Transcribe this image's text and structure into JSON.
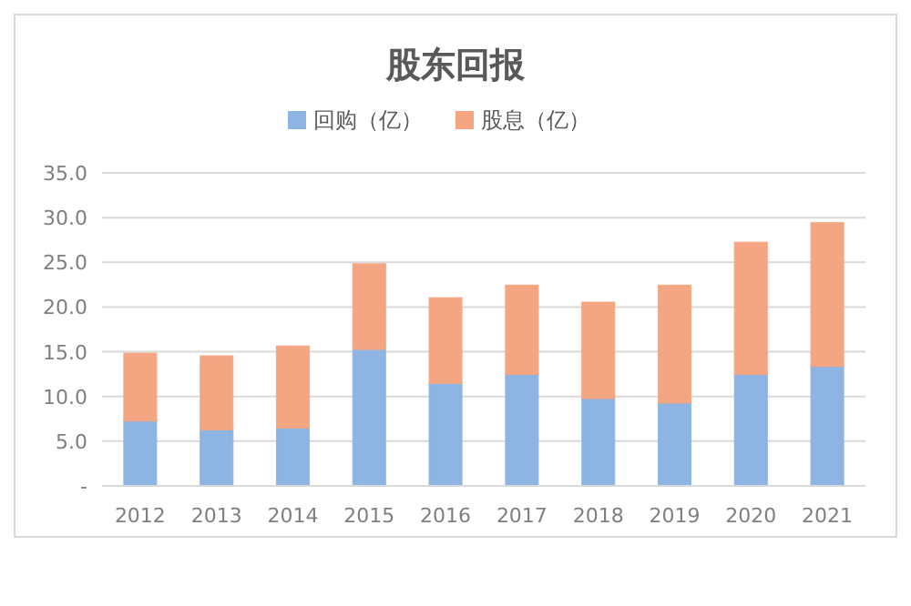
{
  "chart_data": {
    "type": "bar",
    "title": "股东回报",
    "stacked": true,
    "categories": [
      "2012",
      "2013",
      "2014",
      "2015",
      "2016",
      "2017",
      "2018",
      "2019",
      "2020",
      "2021"
    ],
    "series": [
      {
        "name": "回购（亿）",
        "color": "#8db4e2",
        "values": [
          7.3,
          6.3,
          6.5,
          15.3,
          11.5,
          12.5,
          9.8,
          9.3,
          12.5,
          13.4
        ]
      },
      {
        "name": "股息（亿）",
        "color": "#f4a582",
        "values": [
          7.5,
          8.2,
          9.1,
          9.5,
          9.5,
          9.9,
          10.7,
          13.1,
          14.7,
          16.0
        ]
      }
    ],
    "ylim": [
      0,
      35
    ],
    "yticks": [
      {
        "value": 0,
        "label": "-"
      },
      {
        "value": 5,
        "label": "5.0"
      },
      {
        "value": 10,
        "label": "10.0"
      },
      {
        "value": 15,
        "label": "15.0"
      },
      {
        "value": 20,
        "label": "20.0"
      },
      {
        "value": 25,
        "label": "25.0"
      },
      {
        "value": 30,
        "label": "30.0"
      },
      {
        "value": 35,
        "label": "35.0"
      }
    ],
    "grid": "y",
    "legend": "top"
  }
}
